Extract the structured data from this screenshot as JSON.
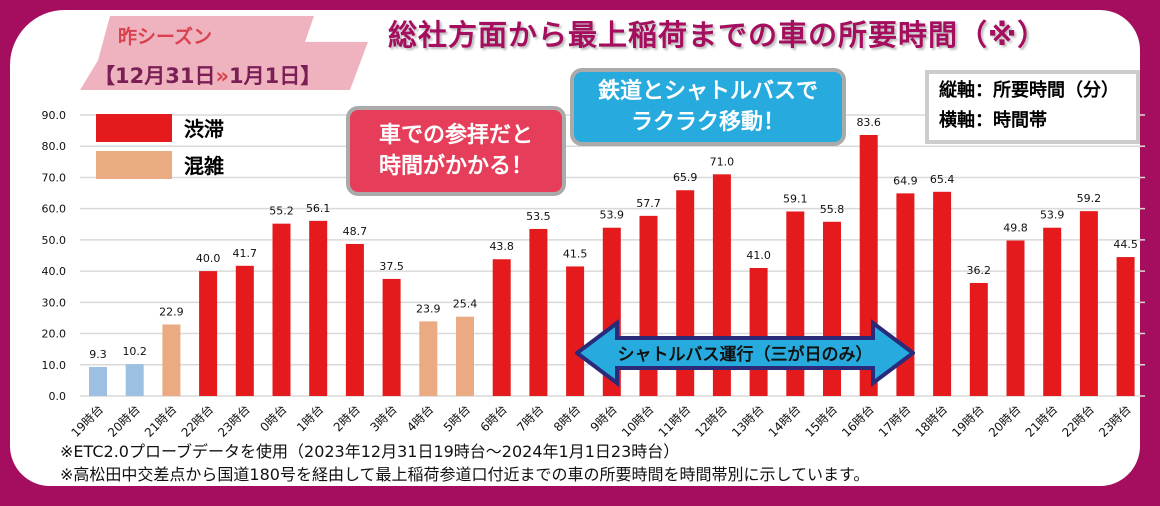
{
  "title": "総社方面から最上稲荷までの車の所要時間（※）",
  "season": {
    "label": "昨シーズン",
    "range_start": "【12月31日",
    "arrow": "»",
    "range_end": "1月1日】"
  },
  "axis_note": {
    "vertical": "縦軸：所要時間（分）",
    "horizontal": "横軸：時間帯"
  },
  "bubble_car": {
    "line1": "車での参拝だと",
    "line2": "時間がかかる！"
  },
  "bubble_train": {
    "line1": "鉄道とシャトルバスで",
    "line2": "ラクラク移動！"
  },
  "shuttle_label": "シャトルバス運行（三が日のみ）",
  "notes": [
    "※ETC2.0プローブデータを使用（2023年12月31日19時台〜2024年1月1日23時台）",
    "※高松田中交差点から国道180号を経由して最上稲荷参道口付近までの車の所要時間を時間帯別に示しています。"
  ],
  "colors": {
    "border": "#A50E5E",
    "jam": "#E41A1C",
    "congested": "#EAAA82",
    "smooth": "#9DC0E2"
  },
  "chart_data": {
    "type": "bar",
    "title": "総社方面から最上稲荷までの車の所要時間（※）",
    "xlabel": "時間帯",
    "ylabel": "所要時間（分）",
    "ylim": [
      0,
      90
    ],
    "yticks": [
      "0.0",
      "10.0",
      "20.0",
      "30.0",
      "40.0",
      "50.0",
      "60.0",
      "70.0",
      "80.0",
      "90.0"
    ],
    "grid": true,
    "legend": [
      {
        "name": "渋滞",
        "status": "jam"
      },
      {
        "name": "混雑",
        "status": "congested"
      }
    ],
    "legend_position": "top-left",
    "categories": [
      "19時台",
      "20時台",
      "21時台",
      "22時台",
      "23時台",
      "0時台",
      "1時台",
      "2時台",
      "3時台",
      "4時台",
      "5時台",
      "6時台",
      "7時台",
      "8時台",
      "9時台",
      "10時台",
      "11時台",
      "12時台",
      "13時台",
      "14時台",
      "15時台",
      "16時台",
      "17時台",
      "18時台",
      "19時台",
      "20時台",
      "21時台",
      "22時台",
      "23時台"
    ],
    "values": [
      9.3,
      10.2,
      22.9,
      40.0,
      41.7,
      55.2,
      56.1,
      48.7,
      37.5,
      23.9,
      25.4,
      43.8,
      53.5,
      41.5,
      53.9,
      57.7,
      65.9,
      71.0,
      41.0,
      59.1,
      55.8,
      83.6,
      64.9,
      65.4,
      36.2,
      49.8,
      53.9,
      59.2,
      44.5
    ],
    "status": [
      "smooth",
      "smooth",
      "congested",
      "jam",
      "jam",
      "jam",
      "jam",
      "jam",
      "jam",
      "congested",
      "congested",
      "jam",
      "jam",
      "jam",
      "jam",
      "jam",
      "jam",
      "jam",
      "jam",
      "jam",
      "jam",
      "jam",
      "jam",
      "jam",
      "jam",
      "jam",
      "jam",
      "jam",
      "jam"
    ],
    "labels": [
      "9.3",
      "10.2",
      "22.9",
      "40.0",
      "41.7",
      "55.2",
      "56.1",
      "48.7",
      "37.5",
      "23.9",
      "25.4",
      "43.8",
      "53.5",
      "41.5",
      "53.9",
      "57.7",
      "65.9",
      "71.0",
      "41.0",
      "59.1",
      "55.8",
      "83.6",
      "64.9",
      "65.4",
      "36.2",
      "49.8",
      "53.9",
      "59.2",
      "44.5"
    ]
  }
}
